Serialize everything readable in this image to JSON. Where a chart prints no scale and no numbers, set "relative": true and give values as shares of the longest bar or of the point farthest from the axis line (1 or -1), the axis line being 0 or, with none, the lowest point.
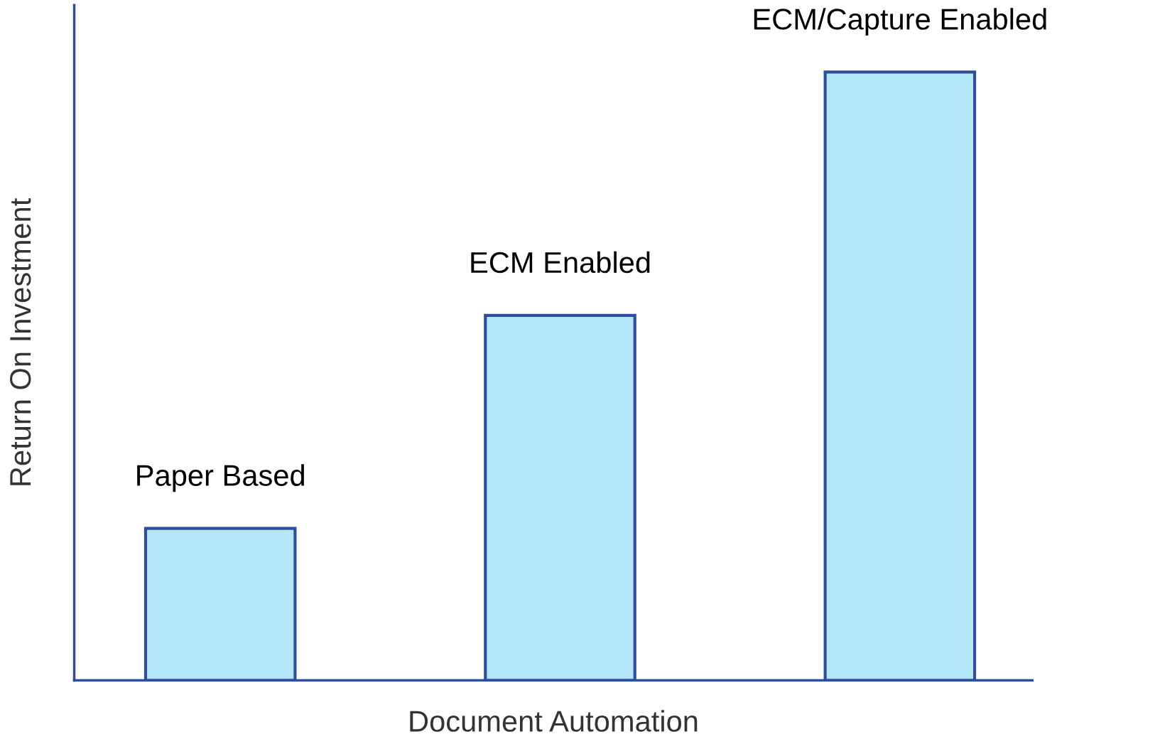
{
  "chart_data": {
    "type": "bar",
    "relative": true,
    "xlabel": "Document Automation",
    "ylabel": "Return On Investment",
    "categories": [
      "Paper Based",
      "ECM Enabled",
      "ECM/Capture Enabled"
    ],
    "values": [
      0.25,
      0.6,
      1
    ],
    "color": "#b3e6f7",
    "legend": false
  }
}
